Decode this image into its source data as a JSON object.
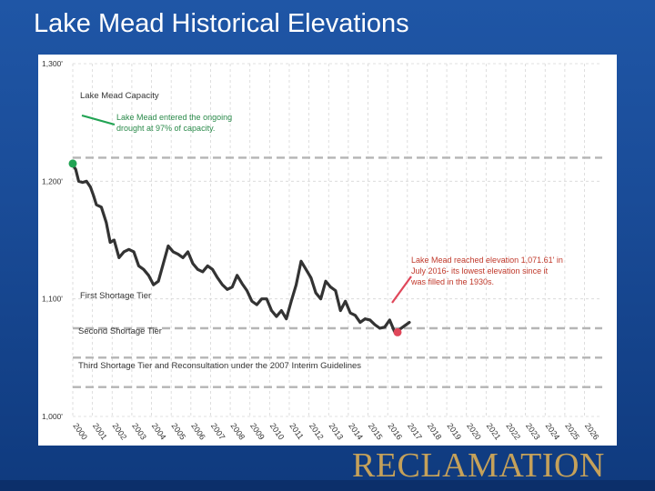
{
  "title": "Lake Mead Historical Elevations",
  "brand": "RECLAMATION",
  "chart_data": {
    "type": "line",
    "title": "Lake Mead Historical Elevations",
    "ylim": [
      1000,
      1300
    ],
    "y_ticks": [
      {
        "value": 1300,
        "label": "1,300'"
      },
      {
        "value": 1200,
        "label": "1,200'"
      },
      {
        "value": 1100,
        "label": "1,100'"
      },
      {
        "value": 1000,
        "label": "1,000'"
      }
    ],
    "x_range": [
      2000,
      2026.9
    ],
    "x_ticks": [
      "2000",
      "2001",
      "2002",
      "2003",
      "2004",
      "2005",
      "2006",
      "2007",
      "2008",
      "2009",
      "2010",
      "2011",
      "2012",
      "2013",
      "2014",
      "2015",
      "2016",
      "2017",
      "2018",
      "2019",
      "2020",
      "2021",
      "2022",
      "2023",
      "2024",
      "2025",
      "2026"
    ],
    "grid": true,
    "reference_lines": [
      {
        "name": "Lake Mead Capacity",
        "value": 1220,
        "color": "#b5b5b5",
        "style": "dashed"
      },
      {
        "name": "First Shortage Tier",
        "value": 1075,
        "color": "#b5b5b5",
        "style": "dashed"
      },
      {
        "name": "Second Shortage Tier",
        "value": 1050,
        "color": "#b5b5b5",
        "style": "dashed"
      },
      {
        "name": "Third Shortage Tier and Reconsultation under the 2007 Interim Guidelines",
        "value": 1025,
        "color": "#b5b5b5",
        "style": "dashed"
      }
    ],
    "series": [
      {
        "name": "Lake Mead Elevation",
        "color": "#333333",
        "x": [
          2000.0,
          2000.15,
          2000.3,
          2000.5,
          2000.7,
          2000.9,
          2001.05,
          2001.2,
          2001.45,
          2001.7,
          2001.9,
          2002.1,
          2002.35,
          2002.6,
          2002.85,
          2003.1,
          2003.35,
          2003.6,
          2003.85,
          2004.1,
          2004.35,
          2004.6,
          2004.85,
          2005.1,
          2005.35,
          2005.6,
          2005.85,
          2006.1,
          2006.35,
          2006.6,
          2006.85,
          2007.1,
          2007.35,
          2007.6,
          2007.85,
          2008.1,
          2008.35,
          2008.6,
          2008.85,
          2009.1,
          2009.35,
          2009.6,
          2009.85,
          2010.1,
          2010.35,
          2010.6,
          2010.85,
          2011.1,
          2011.35,
          2011.6,
          2011.85,
          2012.1,
          2012.35,
          2012.6,
          2012.85,
          2013.1,
          2013.35,
          2013.6,
          2013.85,
          2014.1,
          2014.35,
          2014.6,
          2014.85,
          2015.1,
          2015.35,
          2015.6,
          2015.85,
          2016.1,
          2016.35,
          2016.6,
          2016.85,
          2017.1
        ],
        "values": [
          1214,
          1210,
          1200,
          1199,
          1200,
          1195,
          1188,
          1180,
          1178,
          1165,
          1148,
          1150,
          1135,
          1140,
          1142,
          1140,
          1128,
          1125,
          1120,
          1112,
          1115,
          1130,
          1145,
          1140,
          1138,
          1135,
          1140,
          1130,
          1125,
          1123,
          1128,
          1125,
          1118,
          1112,
          1108,
          1110,
          1120,
          1113,
          1107,
          1098,
          1095,
          1100,
          1100,
          1090,
          1085,
          1090,
          1083,
          1098,
          1112,
          1132,
          1125,
          1118,
          1105,
          1100,
          1115,
          1110,
          1107,
          1090,
          1098,
          1088,
          1086,
          1080,
          1083,
          1082,
          1078,
          1075,
          1076,
          1082,
          1072,
          1074,
          1077,
          1080
        ]
      }
    ],
    "annotations": [
      {
        "id": "capacity",
        "text": "Lake Mead Capacity"
      },
      {
        "id": "drought",
        "text_lines": [
          "Lake Mead entered the ongoing",
          "drought at 97% of capacity."
        ],
        "x": 2000.0,
        "y": 1215
      },
      {
        "id": "low",
        "text_lines": [
          "Lake Mead reached elevation 1,071.61' in",
          "July 2016- its lowest elevation since it",
          "was filled in the 1930s."
        ],
        "x": 2016.5,
        "y": 1071.61
      },
      {
        "id": "first",
        "text": "First Shortage Tier"
      },
      {
        "id": "second",
        "text": "Second Shortage Tier"
      },
      {
        "id": "third",
        "text": "Third Shortage Tier and Reconsultation under the 2007 Interim Guidelines"
      }
    ],
    "markers": [
      {
        "name": "drought-start",
        "x": 2000.0,
        "y": 1215,
        "color": "#21a353"
      },
      {
        "name": "record-low",
        "x": 2016.5,
        "y": 1071.61,
        "color": "#e0475a"
      }
    ]
  }
}
